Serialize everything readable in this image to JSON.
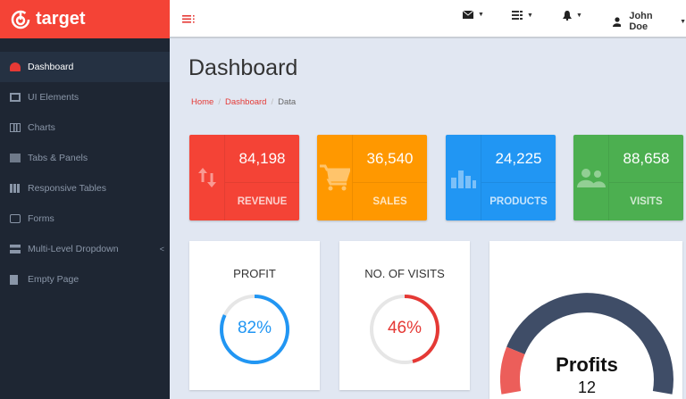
{
  "brand": {
    "name": "target",
    "color": "#f44336"
  },
  "topbar": {
    "icons": [
      "envelope-icon",
      "tasks-icon",
      "bell-icon",
      "user-icon"
    ],
    "user_name": "John Doe"
  },
  "sidebar": {
    "items": [
      {
        "label": "Dashboard",
        "icon": "dashboard-icon",
        "active": true
      },
      {
        "label": "UI Elements",
        "icon": "desktop-icon"
      },
      {
        "label": "Charts",
        "icon": "bar-chart-icon"
      },
      {
        "label": "Tabs & Panels",
        "icon": "panels-icon"
      },
      {
        "label": "Responsive Tables",
        "icon": "table-icon"
      },
      {
        "label": "Forms",
        "icon": "edit-icon"
      },
      {
        "label": "Multi-Level Dropdown",
        "icon": "sitemap-icon",
        "has_children": true
      },
      {
        "label": "Empty Page",
        "icon": "file-icon"
      }
    ]
  },
  "page": {
    "title": "Dashboard",
    "breadcrumb": [
      "Home",
      "Dashboard",
      "Data"
    ]
  },
  "stats": [
    {
      "value": "84,198",
      "label": "REVENUE",
      "icon": "exchange-icon",
      "color": "#f44336"
    },
    {
      "value": "36,540",
      "label": "SALES",
      "icon": "cart-icon",
      "color": "#ff9800"
    },
    {
      "value": "24,225",
      "label": "PRODUCTS",
      "icon": "bar-chart-icon",
      "color": "#2196f3"
    },
    {
      "value": "88,658",
      "label": "VISITS",
      "icon": "users-icon",
      "color": "#4caf50"
    }
  ],
  "gauges": [
    {
      "title": "PROFIT",
      "percent": 82,
      "text": "82%",
      "color": "#2196f3"
    },
    {
      "title": "NO. OF VISITS",
      "percent": 46,
      "text": "46%",
      "color": "#e53935"
    }
  ],
  "donut": {
    "title": "Profits",
    "value": "12",
    "colors": [
      "#3f4d67",
      "#ec5e5a"
    ]
  }
}
